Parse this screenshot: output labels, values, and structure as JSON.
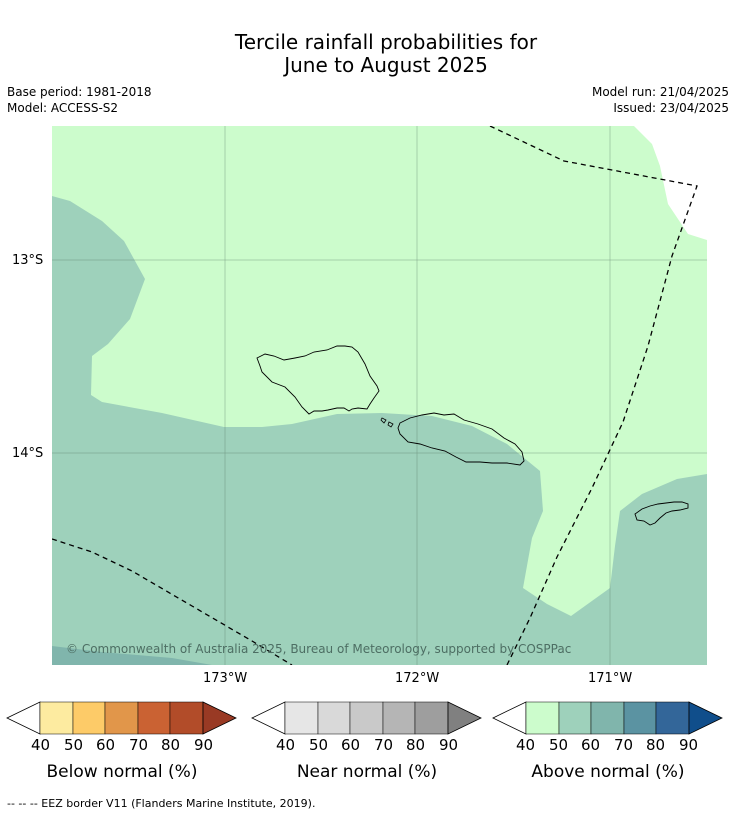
{
  "title": {
    "line1": "Tercile rainfall probabilities for",
    "line2": "June to August 2025"
  },
  "meta": {
    "base_period": "Base period: 1981-2018",
    "model": "Model: ACCESS-S2",
    "model_run": "Model run: 21/04/2025",
    "issued": "Issued: 23/04/2025"
  },
  "map": {
    "lat_ticks": [
      "13°S",
      "14°S"
    ],
    "lon_ticks": [
      "173°W",
      "172°W",
      "171°W"
    ],
    "copyright": "© Commonwealth of Australia 2025, Bureau of Meteorology, supported by COSPPac",
    "colors": {
      "above_40_50": "#ccfccc",
      "above_50_60": "#9ed1bb",
      "above_60_70": "#80b5ac"
    }
  },
  "legend": {
    "ticks": [
      "40",
      "50",
      "60",
      "70",
      "80",
      "90"
    ],
    "colorbars": [
      {
        "label": "Below normal (%)",
        "colors": [
          "#fdeba0",
          "#fdcb68",
          "#e1964a",
          "#ca6233",
          "#b24c29",
          "#993a24"
        ]
      },
      {
        "label": "Near normal (%)",
        "colors": [
          "#e6e6e6",
          "#d9d9d9",
          "#c9c9c9",
          "#b5b5b5",
          "#9e9e9e",
          "#808080"
        ]
      },
      {
        "label": "Above normal (%)",
        "colors": [
          "#ccfccc",
          "#9ed1bb",
          "#80b5ac",
          "#5b93a2",
          "#336699",
          "#104e8b"
        ]
      }
    ]
  },
  "footnote": "--  --  -- EEZ border V11 (Flanders Marine Institute, 2019)."
}
